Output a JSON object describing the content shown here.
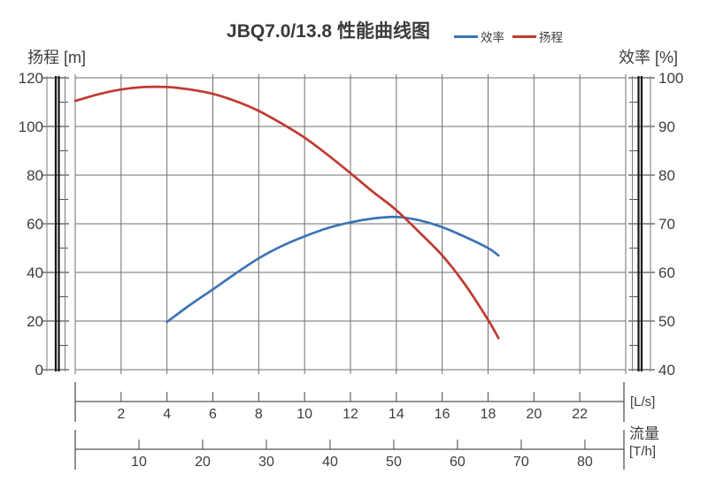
{
  "header": {
    "title": "JBQ7.0/13.8 性能曲线图",
    "legend": [
      {
        "label": "效率",
        "color": "#3c73b5"
      },
      {
        "label": "扬程",
        "color": "#c03a33"
      }
    ]
  },
  "axis_labels": {
    "left": "扬程 [m]",
    "right": "效率 [%]",
    "flow_unit_ls": "[L/s]",
    "flow": "流量",
    "flow_unit_th": "[T/h]"
  },
  "chart_data": {
    "type": "line",
    "title": "JBQ7.0/13.8 性能曲线图",
    "x_axis": {
      "label": "流量",
      "units": [
        "L/s",
        "T/h"
      ],
      "range_ls": [
        0,
        24
      ],
      "ticks_ls": [
        2,
        4,
        6,
        8,
        10,
        12,
        14,
        16,
        18,
        20,
        22
      ],
      "ticks_th": [
        10,
        20,
        30,
        40,
        50,
        60,
        70,
        80
      ],
      "grid_step_ls": 2
    },
    "y_left_axis": {
      "label": "扬程",
      "unit": "m",
      "range": [
        0,
        120
      ],
      "ticks": [
        0,
        20,
        40,
        60,
        80,
        100,
        120
      ],
      "minor_step": 10
    },
    "y_right_axis": {
      "label": "效率",
      "unit": "%",
      "range": [
        40,
        100
      ],
      "ticks": [
        40,
        50,
        60,
        70,
        80,
        90,
        100
      ],
      "minor_step": 5
    },
    "grid": true,
    "legend_position": "top-right",
    "series": [
      {
        "name": "效率",
        "axis": "right",
        "unit": "%",
        "color": "#3c73b5",
        "points": [
          [
            4,
            49.8
          ],
          [
            5,
            53.3
          ],
          [
            6,
            56.5
          ],
          [
            7,
            59.8
          ],
          [
            8,
            62.9
          ],
          [
            9,
            65.4
          ],
          [
            10,
            67.4
          ],
          [
            11,
            69.1
          ],
          [
            12,
            70.3
          ],
          [
            13,
            71.1
          ],
          [
            14,
            71.4
          ],
          [
            15,
            70.7
          ],
          [
            16,
            69.3
          ],
          [
            17,
            67.3
          ],
          [
            18,
            65.0
          ],
          [
            18.45,
            63.5
          ]
        ]
      },
      {
        "name": "扬程",
        "axis": "left",
        "unit": "m",
        "color": "#c03a33",
        "points": [
          [
            0,
            110.5
          ],
          [
            1,
            113.2
          ],
          [
            2,
            115.2
          ],
          [
            3,
            116.2
          ],
          [
            4,
            116.2
          ],
          [
            5,
            115.2
          ],
          [
            6,
            113.4
          ],
          [
            7,
            110.4
          ],
          [
            8,
            106.4
          ],
          [
            9,
            101.2
          ],
          [
            10,
            95.4
          ],
          [
            11,
            88.4
          ],
          [
            12,
            80.8
          ],
          [
            13,
            73.0
          ],
          [
            14,
            65.6
          ],
          [
            15,
            56.5
          ],
          [
            16,
            47.0
          ],
          [
            17,
            35.0
          ],
          [
            18,
            20.5
          ],
          [
            18.45,
            13.0
          ]
        ]
      }
    ]
  },
  "colors": {
    "grid": "#6f6f6f",
    "axis_line": "#555555",
    "axis_bar_black": "#141414",
    "axis_bar_thin": "#7a7a7a",
    "text": "#3d3d3d"
  }
}
